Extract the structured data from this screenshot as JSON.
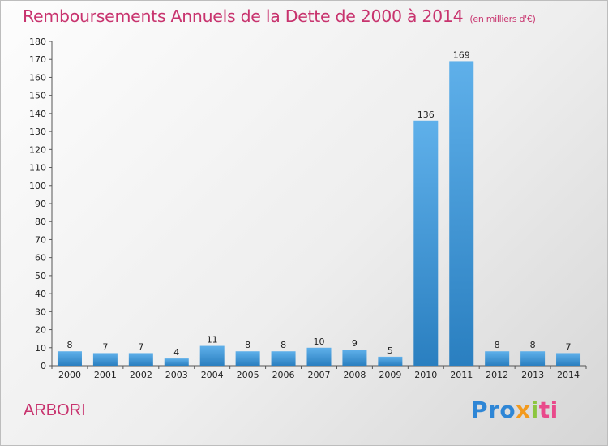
{
  "header": {
    "title": "Remboursements Annuels de la Dette de 2000 à 2014",
    "unit": "(en milliers d'€)"
  },
  "footer": {
    "place": "ARBORI",
    "brand": [
      "Pro",
      "x",
      "i",
      "ti"
    ]
  },
  "colors": {
    "title": "#c8336e",
    "bar_light": "#5fb0ea",
    "bar_dark": "#2a7fc0",
    "brand_blue": "#2e86d6",
    "brand_orange": "#f39a1d",
    "brand_green": "#8cc63f",
    "brand_pink": "#e94a8b"
  },
  "chart_data": {
    "type": "bar",
    "title": "Remboursements Annuels de la Dette de 2000 à 2014",
    "subtitle": "(en milliers d'€)",
    "xlabel": "",
    "ylabel": "",
    "categories": [
      "2000",
      "2001",
      "2002",
      "2003",
      "2004",
      "2005",
      "2006",
      "2007",
      "2008",
      "2009",
      "2010",
      "2011",
      "2012",
      "2013",
      "2014"
    ],
    "values": [
      8,
      7,
      7,
      4,
      11,
      8,
      8,
      10,
      9,
      5,
      136,
      169,
      8,
      8,
      7
    ],
    "ylim": [
      0,
      180
    ],
    "yticks": [
      0,
      10,
      20,
      30,
      40,
      50,
      60,
      70,
      80,
      90,
      100,
      110,
      120,
      130,
      140,
      150,
      160,
      170,
      180
    ],
    "grid": false,
    "data_labels": true
  }
}
